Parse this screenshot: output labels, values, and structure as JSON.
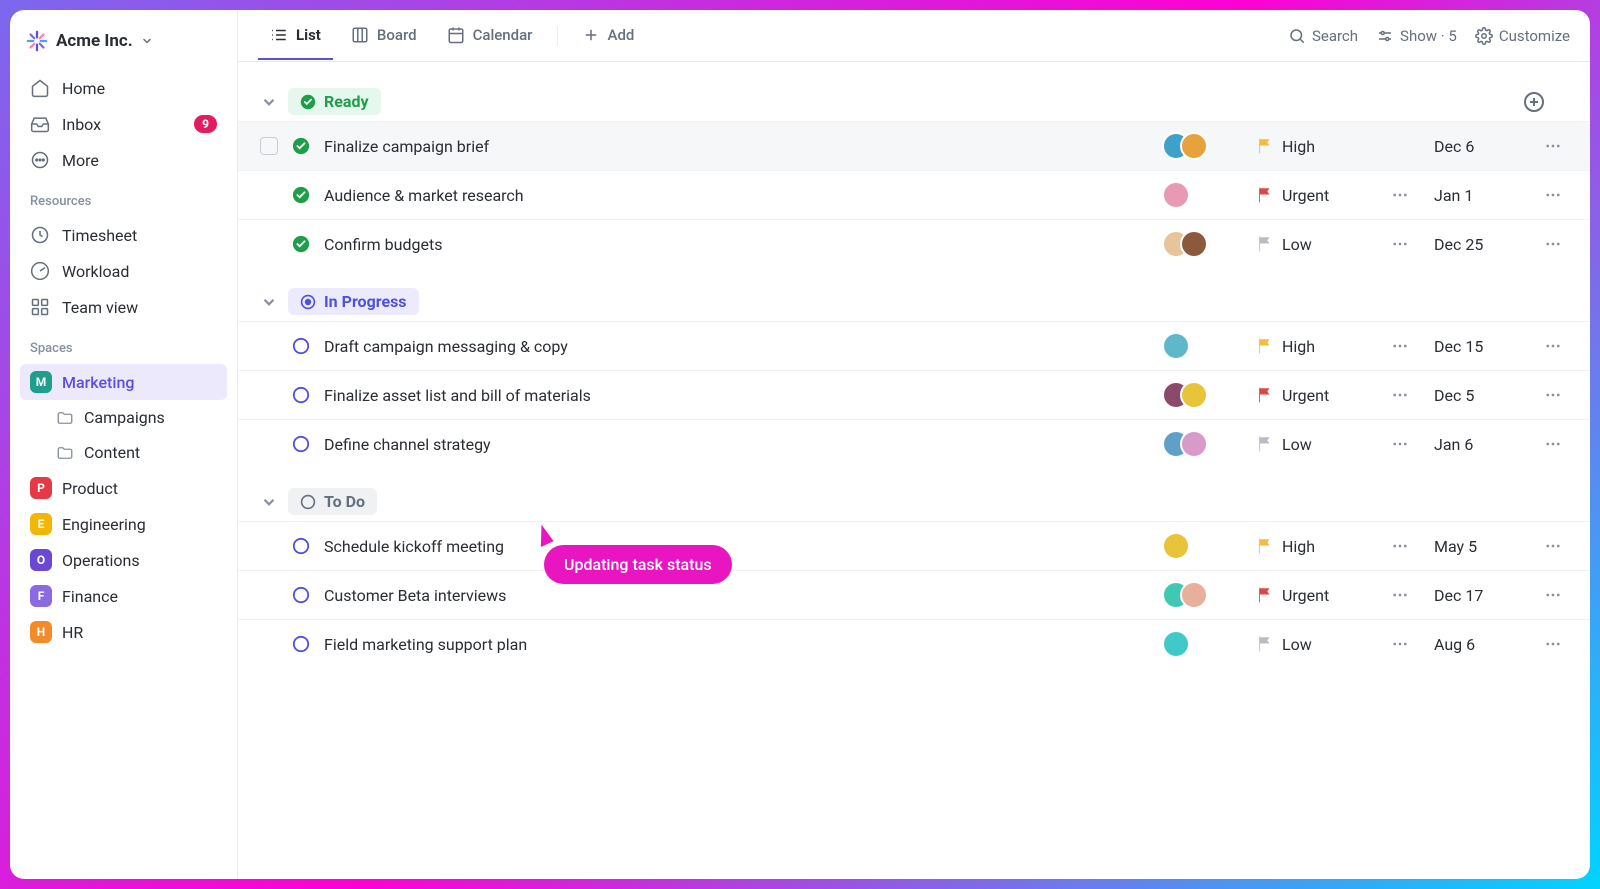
{
  "workspace": {
    "name": "Acme Inc."
  },
  "sidebar": {
    "nav": {
      "home": "Home",
      "inbox": "Inbox",
      "inbox_badge": "9",
      "more": "More"
    },
    "resources_label": "Resources",
    "resources": {
      "timesheet": "Timesheet",
      "workload": "Workload",
      "teamview": "Team view"
    },
    "spaces_label": "Spaces",
    "spaces": [
      {
        "letter": "M",
        "label": "Marketing",
        "color": "#1f9e8e",
        "active": true,
        "folders": [
          "Campaigns",
          "Content"
        ]
      },
      {
        "letter": "P",
        "label": "Product",
        "color": "#e63946"
      },
      {
        "letter": "E",
        "label": "Engineering",
        "color": "#f2b705"
      },
      {
        "letter": "O",
        "label": "Operations",
        "color": "#6c47d6"
      },
      {
        "letter": "F",
        "label": "Finance",
        "color": "#8a6ce0"
      },
      {
        "letter": "H",
        "label": "HR",
        "color": "#f28c28"
      }
    ]
  },
  "toolbar": {
    "views": {
      "list": "List",
      "board": "Board",
      "calendar": "Calendar",
      "add": "Add"
    },
    "actions": {
      "search": "Search",
      "show": "Show · 5",
      "customize": "Customize"
    }
  },
  "groups": [
    {
      "id": "ready",
      "label": "Ready",
      "pill_bg": "#e6f7ee",
      "pill_color": "#1f9e4a",
      "status_type": "checked",
      "tasks": [
        {
          "status": "checked",
          "title": "Finalize campaign brief",
          "avatars": [
            "#3fa0c9",
            "#e8a23b"
          ],
          "priority": "High",
          "priority_color": "#f5bb3c",
          "date": "Dec 6",
          "highlighted": true,
          "has_checkbox": true,
          "tags": false
        },
        {
          "status": "checked",
          "title": "Audience & market research",
          "avatars": [
            "#e89ab5"
          ],
          "priority": "Urgent",
          "priority_color": "#e34545",
          "date": "Jan 1",
          "tags": true
        },
        {
          "status": "checked",
          "title": "Confirm budgets",
          "avatars": [
            "#e8c49a",
            "#8b5a3c"
          ],
          "priority": "Low",
          "priority_color": "#b8bcc4",
          "date": "Dec 25",
          "tags": true
        }
      ]
    },
    {
      "id": "inprogress",
      "label": "In Progress",
      "pill_bg": "#eceaff",
      "pill_color": "#4f50db",
      "status_type": "progress",
      "tasks": [
        {
          "status": "open",
          "title": "Draft campaign messaging & copy",
          "avatars": [
            "#5fb8c9"
          ],
          "priority": "High",
          "priority_color": "#f5bb3c",
          "date": "Dec 15",
          "tags": true
        },
        {
          "status": "open",
          "title": "Finalize asset list and bill of materials",
          "avatars": [
            "#8b4a6c",
            "#e8c43b"
          ],
          "priority": "Urgent",
          "priority_color": "#e34545",
          "date": "Dec 5",
          "tags": true
        },
        {
          "status": "open",
          "title": "Define channel strategy",
          "avatars": [
            "#5fa0c9",
            "#d89ac9"
          ],
          "priority": "Low",
          "priority_color": "#b8bcc4",
          "date": "Jan 6",
          "tags": true
        }
      ]
    },
    {
      "id": "todo",
      "label": "To Do",
      "pill_bg": "#f0f1f3",
      "pill_color": "#656f7d",
      "status_type": "open",
      "tasks": [
        {
          "status": "open",
          "title": "Schedule kickoff meeting",
          "avatars": [
            "#e8c43b"
          ],
          "priority": "High",
          "priority_color": "#f5bb3c",
          "date": "May 5",
          "tags": true
        },
        {
          "status": "open",
          "title": "Customer Beta interviews",
          "avatars": [
            "#3fc9b0",
            "#e8b09a"
          ],
          "priority": "Urgent",
          "priority_color": "#e34545",
          "date": "Dec 17",
          "tags": true
        },
        {
          "status": "open",
          "title": "Field marketing support plan",
          "avatars": [
            "#3fc9c9"
          ],
          "priority": "Low",
          "priority_color": "#b8bcc4",
          "date": "Aug 6",
          "tags": true
        }
      ]
    }
  ],
  "tooltip": {
    "text": "Updating task status"
  }
}
